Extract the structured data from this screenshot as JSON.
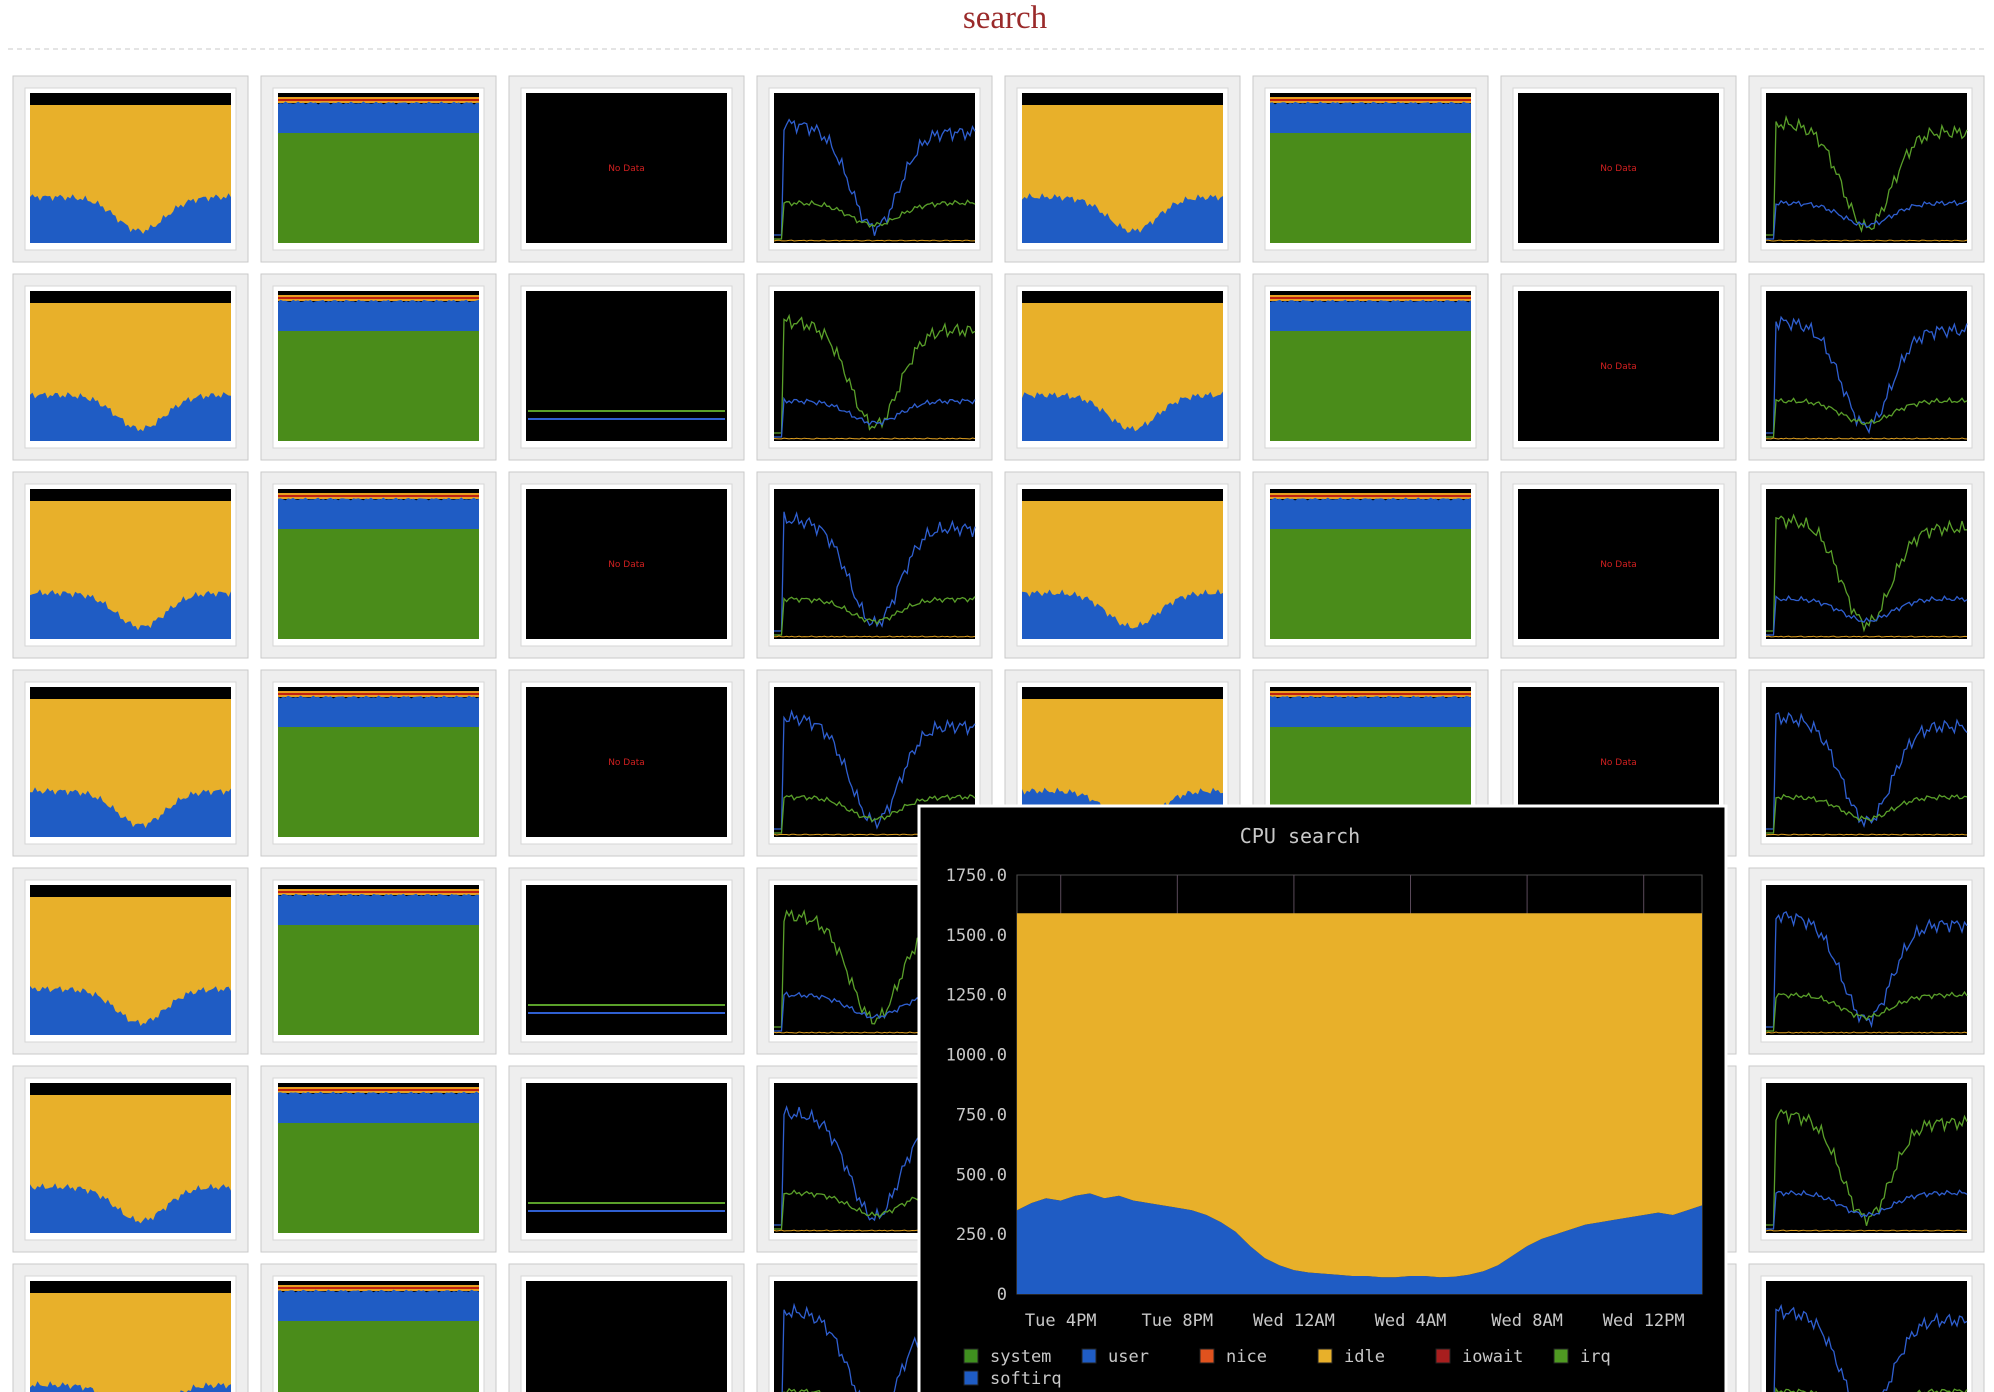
{
  "header": {
    "title": "search"
  },
  "no_data_labels": [
    "No Data",
    "No Data",
    "No Data",
    "No Data",
    "No Data",
    "No Data",
    "No Data"
  ],
  "chart_data": {
    "type": "stacked-area",
    "title": "CPU search",
    "categories": [
      null,
      null,
      null,
      "Tue 4PM",
      null,
      null,
      null,
      null,
      null,
      null,
      null,
      "Tue 8PM",
      null,
      null,
      null,
      null,
      null,
      null,
      null,
      "Wed 12AM",
      null,
      null,
      null,
      null,
      null,
      null,
      null,
      "Wed 4AM",
      null,
      null,
      null,
      null,
      null,
      null,
      null,
      "Wed 8AM",
      null,
      null,
      null,
      null,
      null,
      null,
      null,
      "Wed 12PM",
      null,
      null,
      null,
      null
    ],
    "ylim": [
      0,
      1750
    ],
    "yticks": [
      0,
      {
        "value": 250,
        "label": "250.0"
      },
      {
        "value": 500,
        "label": "500.0"
      },
      {
        "value": 750,
        "label": "750.0"
      },
      {
        "value": 1000,
        "label": "1000.0"
      },
      {
        "value": 1250,
        "label": "1250.0"
      },
      {
        "value": 1500,
        "label": "1500.0"
      },
      {
        "value": 1750,
        "label": "1750.0"
      }
    ],
    "grid": true,
    "series": [
      {
        "name": "system",
        "color": "#3f8f1f",
        "values": [
          0,
          0,
          0,
          0,
          0,
          0,
          0,
          0,
          0,
          0,
          0,
          0,
          0,
          0,
          0,
          0,
          0,
          0,
          0,
          0,
          0,
          0,
          0,
          0,
          0,
          0,
          0,
          0,
          0,
          0,
          0,
          0,
          0,
          0,
          0,
          0,
          0,
          0,
          0,
          0,
          0,
          0,
          0,
          0,
          0,
          0,
          0,
          0
        ]
      },
      {
        "name": "user",
        "color": "#1f5cc4",
        "values": [
          350,
          380,
          400,
          390,
          410,
          420,
          400,
          410,
          390,
          380,
          370,
          360,
          350,
          330,
          300,
          260,
          200,
          150,
          120,
          100,
          90,
          85,
          80,
          75,
          75,
          70,
          70,
          75,
          75,
          70,
          72,
          80,
          95,
          120,
          160,
          200,
          230,
          250,
          270,
          290,
          300,
          310,
          320,
          330,
          340,
          330,
          350,
          370
        ]
      },
      {
        "name": "nice",
        "color": "#e0521e",
        "values": [
          0,
          0,
          0,
          0,
          0,
          0,
          0,
          0,
          0,
          0,
          0,
          0,
          0,
          0,
          0,
          0,
          0,
          0,
          0,
          0,
          0,
          0,
          0,
          0,
          0,
          0,
          0,
          0,
          0,
          0,
          0,
          0,
          0,
          0,
          0,
          0,
          0,
          0,
          0,
          0,
          0,
          0,
          0,
          0,
          0,
          0,
          0,
          0
        ]
      },
      {
        "name": "idle",
        "color": "#e8b02a",
        "values": [
          1240,
          1210,
          1190,
          1200,
          1180,
          1170,
          1190,
          1180,
          1200,
          1210,
          1220,
          1230,
          1240,
          1260,
          1290,
          1330,
          1390,
          1440,
          1470,
          1490,
          1500,
          1505,
          1510,
          1515,
          1515,
          1520,
          1520,
          1515,
          1515,
          1520,
          1518,
          1510,
          1495,
          1470,
          1430,
          1390,
          1360,
          1340,
          1320,
          1300,
          1290,
          1280,
          1270,
          1260,
          1250,
          1260,
          1240,
          1220
        ]
      },
      {
        "name": "iowait",
        "color": "#a81e1e",
        "values": [
          0,
          0,
          0,
          0,
          0,
          0,
          0,
          0,
          0,
          0,
          0,
          0,
          0,
          0,
          0,
          0,
          0,
          0,
          0,
          0,
          0,
          0,
          0,
          0,
          0,
          0,
          0,
          0,
          0,
          0,
          0,
          0,
          0,
          0,
          0,
          0,
          0,
          0,
          0,
          0,
          0,
          0,
          0,
          0,
          0,
          0,
          0,
          0
        ]
      },
      {
        "name": "irq",
        "color": "#4f9a22",
        "values": [
          0,
          0,
          0,
          0,
          0,
          0,
          0,
          0,
          0,
          0,
          0,
          0,
          0,
          0,
          0,
          0,
          0,
          0,
          0,
          0,
          0,
          0,
          0,
          0,
          0,
          0,
          0,
          0,
          0,
          0,
          0,
          0,
          0,
          0,
          0,
          0,
          0,
          0,
          0,
          0,
          0,
          0,
          0,
          0,
          0,
          0,
          0,
          0
        ]
      },
      {
        "name": "softirq",
        "color": "#1f5cc4",
        "values": [
          0,
          0,
          0,
          0,
          0,
          0,
          0,
          0,
          0,
          0,
          0,
          0,
          0,
          0,
          0,
          0,
          0,
          0,
          0,
          0,
          0,
          0,
          0,
          0,
          0,
          0,
          0,
          0,
          0,
          0,
          0,
          0,
          0,
          0,
          0,
          0,
          0,
          0,
          0,
          0,
          0,
          0,
          0,
          0,
          0,
          0,
          0,
          0
        ]
      }
    ]
  }
}
